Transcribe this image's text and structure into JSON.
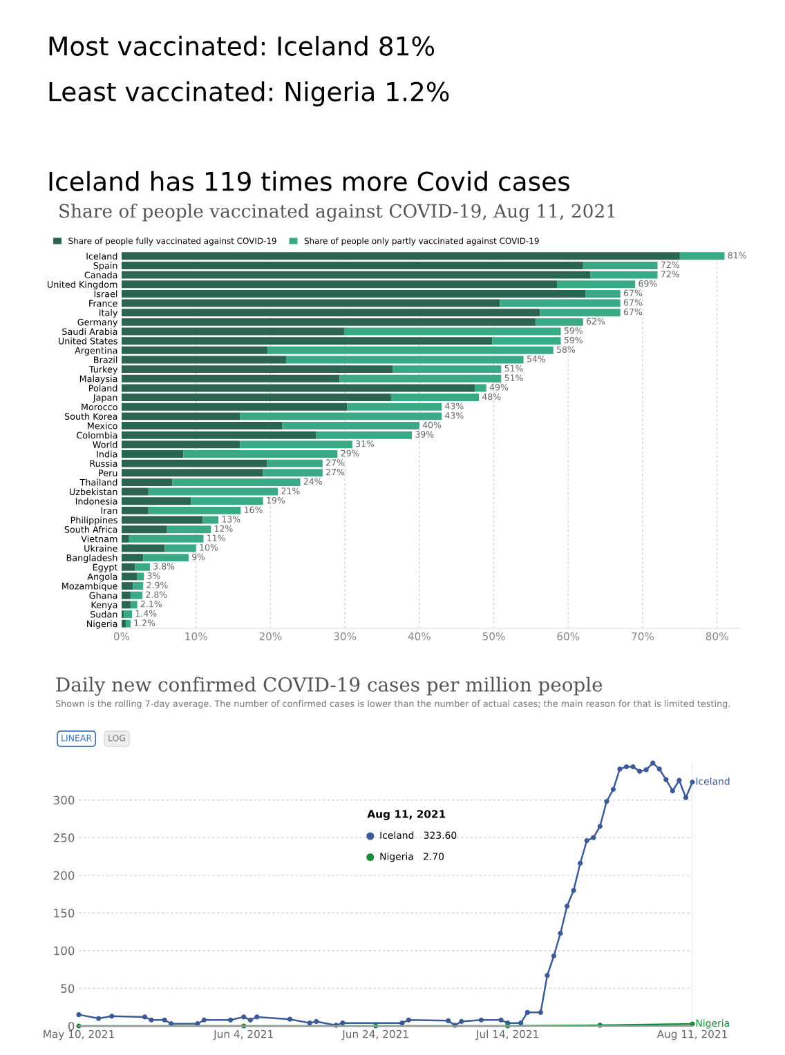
{
  "chart_data": [
    {
      "type": "bar",
      "orientation": "horizontal",
      "stacked": true,
      "annotations": [
        "Most vaccinated: Iceland 81%",
        "Least vaccinated: Nigeria 1.2%",
        "Iceland has 119 times more Covid cases"
      ],
      "title": "Share of people vaccinated against COVID-19, Aug 11, 2021",
      "categories": [
        "Iceland",
        "Spain",
        "Canada",
        "United Kingdom",
        "Israel",
        "France",
        "Italy",
        "Germany",
        "Saudi Arabia",
        "United States",
        "Argentina",
        "Brazil",
        "Turkey",
        "Malaysia",
        "Poland",
        "Japan",
        "Morocco",
        "South Korea",
        "Mexico",
        "Colombia",
        "World",
        "India",
        "Russia",
        "Peru",
        "Thailand",
        "Uzbekistan",
        "Indonesia",
        "Iran",
        "Philippines",
        "South Africa",
        "Vietnam",
        "Ukraine",
        "Bangladesh",
        "Egypt",
        "Angola",
        "Mozambique",
        "Ghana",
        "Kenya",
        "Sudan",
        "Nigeria"
      ],
      "series": [
        {
          "name": "Share of people fully vaccinated against COVID-19",
          "color": "#2b6451",
          "values": [
            75,
            62,
            63,
            58.5,
            62.3,
            50.8,
            56.2,
            55.6,
            29.9,
            49.8,
            19.6,
            22.1,
            36.4,
            29.3,
            47.5,
            36.2,
            30.3,
            15.9,
            21.6,
            26.1,
            15.9,
            8.3,
            19.5,
            19.0,
            6.8,
            3.6,
            9.3,
            3.6,
            10.9,
            6.1,
            1.0,
            5.8,
            2.9,
            1.8,
            2.1,
            1.5,
            1.2,
            1.2,
            0.3,
            0.6
          ]
        },
        {
          "name": "Share of people only partly vaccinated against COVID-19",
          "color": "#3aa985",
          "values": [
            6,
            10,
            9,
            10.5,
            4.7,
            16.2,
            10.8,
            6.4,
            29.1,
            9.2,
            38.4,
            31.9,
            14.6,
            21.7,
            1.5,
            11.8,
            12.7,
            27.1,
            18.4,
            12.9,
            15.1,
            20.7,
            7.5,
            8.0,
            17.2,
            17.4,
            9.7,
            12.4,
            2.1,
            5.9,
            10,
            4.2,
            6.1,
            2.0,
            0.9,
            1.4,
            1.6,
            0.9,
            1.1,
            0.6
          ]
        }
      ],
      "totals": [
        "81%",
        "72%",
        "72%",
        "69%",
        "67%",
        "67%",
        "67%",
        "62%",
        "59%",
        "59%",
        "58%",
        "54%",
        "51%",
        "51%",
        "49%",
        "48%",
        "43%",
        "43%",
        "40%",
        "39%",
        "31%",
        "29%",
        "27%",
        "27%",
        "24%",
        "21%",
        "19%",
        "16%",
        "13%",
        "12%",
        "11%",
        "10%",
        "9%",
        "3.8%",
        "3%",
        "2.9%",
        "2.8%",
        "2.1%",
        "1.4%",
        "1.2%"
      ],
      "xlim": [
        0,
        83
      ],
      "xticks": [
        {
          "value": 0,
          "label": "0%"
        },
        {
          "value": 10,
          "label": "10%"
        },
        {
          "value": 20,
          "label": "20%"
        },
        {
          "value": 30,
          "label": "30%"
        },
        {
          "value": 40,
          "label": "40%"
        },
        {
          "value": 50,
          "label": "50%"
        },
        {
          "value": 60,
          "label": "60%"
        },
        {
          "value": 70,
          "label": "70%"
        },
        {
          "value": 80,
          "label": "80%"
        }
      ],
      "grid": "x",
      "legend": "top left"
    },
    {
      "type": "line",
      "title": "Daily new confirmed COVID-19 cases per million people",
      "subtitle": "Shown is the rolling 7-day average. The number of confirmed cases is lower than the number of actual cases; the main reason for that is limited testing.",
      "annotations": [
        "LINEAR",
        "LOG",
        "Aug 11, 2021",
        "Iceland   323.60",
        "Nigeria   2.70"
      ],
      "series": [
        {
          "name": "Iceland",
          "color": "#3d5a98",
          "x": [
            "2021-05-10",
            "2021-05-13",
            "2021-05-15",
            "2021-05-20",
            "2021-05-21",
            "2021-05-23",
            "2021-05-24",
            "2021-05-28",
            "2021-05-29",
            "2021-06-02",
            "2021-06-04",
            "2021-06-05",
            "2021-06-06",
            "2021-06-11",
            "2021-06-14",
            "2021-06-15",
            "2021-06-18",
            "2021-06-19",
            "2021-06-28",
            "2021-06-29",
            "2021-07-05",
            "2021-07-06",
            "2021-07-07",
            "2021-07-10",
            "2021-07-13",
            "2021-07-14",
            "2021-07-16",
            "2021-07-17",
            "2021-07-19",
            "2021-07-20",
            "2021-07-21",
            "2021-07-22",
            "2021-07-23",
            "2021-07-24",
            "2021-07-25",
            "2021-07-26",
            "2021-07-27",
            "2021-07-28",
            "2021-07-29",
            "2021-07-30",
            "2021-07-31",
            "2021-08-01",
            "2021-08-02",
            "2021-08-03",
            "2021-08-04",
            "2021-08-05",
            "2021-08-06",
            "2021-08-07",
            "2021-08-08",
            "2021-08-09",
            "2021-08-10",
            "2021-08-11"
          ],
          "values": [
            15,
            10,
            13,
            12,
            8,
            8,
            3,
            3,
            8,
            8,
            12,
            8,
            12,
            9,
            4,
            6,
            1,
            4,
            4,
            8,
            7,
            1,
            6,
            8,
            8,
            4,
            4,
            18,
            18,
            67,
            93,
            123,
            159,
            180,
            216,
            246,
            250,
            265,
            298,
            314,
            341,
            344,
            344,
            338,
            340,
            349,
            341,
            327,
            312,
            326,
            303,
            323.6
          ]
        },
        {
          "name": "Nigeria",
          "color": "#1b8a3c",
          "x": [
            "2021-05-10",
            "2021-06-04",
            "2021-06-24",
            "2021-07-14",
            "2021-07-28",
            "2021-08-11"
          ],
          "values": [
            0,
            0,
            0,
            0,
            1,
            2.7
          ]
        }
      ],
      "xlim": [
        "2021-05-10",
        "2021-08-11"
      ],
      "xticks": [
        {
          "value": "2021-05-10",
          "label": "May 10, 2021"
        },
        {
          "value": "2021-06-04",
          "label": "Jun 4, 2021"
        },
        {
          "value": "2021-06-24",
          "label": "Jun 24, 2021"
        },
        {
          "value": "2021-07-14",
          "label": "Jul 14, 2021"
        },
        {
          "value": "2021-08-11",
          "label": "Aug 11, 2021"
        }
      ],
      "ylim": [
        0,
        350
      ],
      "yticks": [
        0,
        50,
        100,
        150,
        200,
        250,
        300
      ],
      "grid": "y",
      "marker": "circle",
      "ref_lines": [
        {
          "axis": "x",
          "value": "2021-08-11",
          "color": "#dddddd"
        }
      ]
    }
  ]
}
